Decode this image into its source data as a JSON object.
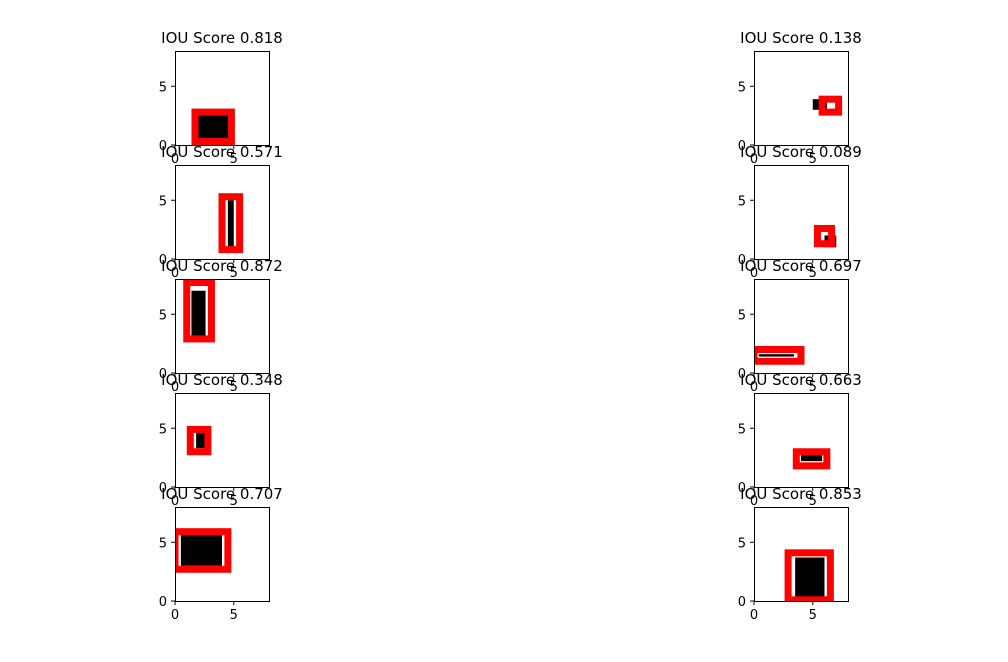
{
  "chart_data": [
    {
      "type": "box-overlap",
      "title": "IOU Score 0.818",
      "xlim": [
        0,
        8
      ],
      "ylim": [
        0,
        8
      ],
      "xticks": [
        "0",
        "5"
      ],
      "yticks": [
        "0",
        "5"
      ],
      "ground_truth_box": [
        1.8,
        0.0,
        5.0,
        3.0
      ],
      "predicted_box": [
        1.7,
        0.3,
        4.8,
        2.8
      ],
      "iou": 0.818
    },
    {
      "type": "box-overlap",
      "title": "IOU Score 0.138",
      "xlim": [
        0,
        8
      ],
      "ylim": [
        0,
        8
      ],
      "xticks": [
        "0",
        "5"
      ],
      "yticks": [
        "0",
        "5"
      ],
      "ground_truth_box": [
        5.0,
        3.0,
        6.2,
        3.9
      ],
      "predicted_box": [
        5.8,
        2.8,
        7.2,
        3.9
      ],
      "iou": 0.138
    },
    {
      "type": "box-overlap",
      "title": "IOU Score 0.571",
      "xlim": [
        0,
        8
      ],
      "ylim": [
        0,
        8
      ],
      "xticks": [
        "0",
        "5"
      ],
      "yticks": [
        "0",
        "5"
      ],
      "ground_truth_box": [
        4.5,
        1.0,
        5.0,
        5.0
      ],
      "predicted_box": [
        4.0,
        0.8,
        5.5,
        5.3
      ],
      "iou": 0.571
    },
    {
      "type": "box-overlap",
      "title": "IOU Score 0.089",
      "xlim": [
        0,
        8
      ],
      "ylim": [
        0,
        8
      ],
      "xticks": [
        "0",
        "5"
      ],
      "yticks": [
        "0",
        "5"
      ],
      "ground_truth_box": [
        6.0,
        1.0,
        7.0,
        2.0
      ],
      "predicted_box": [
        5.4,
        1.3,
        6.6,
        2.6
      ],
      "iou": 0.089
    },
    {
      "type": "box-overlap",
      "title": "IOU Score 0.872",
      "xlim": [
        0,
        8
      ],
      "ylim": [
        0,
        8
      ],
      "xticks": [
        "0",
        "5"
      ],
      "yticks": [
        "0",
        "5"
      ],
      "ground_truth_box": [
        1.4,
        3.0,
        2.6,
        7.0
      ],
      "predicted_box": [
        1.0,
        2.9,
        3.1,
        7.7
      ],
      "iou": 0.872
    },
    {
      "type": "box-overlap",
      "title": "IOU Score 0.697",
      "xlim": [
        0,
        8
      ],
      "ylim": [
        0,
        8
      ],
      "xticks": [
        "0",
        "5"
      ],
      "yticks": [
        "0",
        "5"
      ],
      "ground_truth_box": [
        0.4,
        1.4,
        3.4,
        1.6
      ],
      "predicted_box": [
        0.0,
        1.0,
        4.0,
        2.0
      ],
      "iou": 0.697
    },
    {
      "type": "box-overlap",
      "title": "IOU Score 0.348",
      "xlim": [
        0,
        8
      ],
      "ylim": [
        0,
        8
      ],
      "xticks": [
        "0",
        "5"
      ],
      "yticks": [
        "0",
        "5"
      ],
      "ground_truth_box": [
        1.8,
        3.3,
        3.0,
        5.0
      ],
      "predicted_box": [
        1.3,
        3.0,
        2.8,
        4.9
      ],
      "iou": 0.348
    },
    {
      "type": "box-overlap",
      "title": "IOU Score 0.663",
      "xlim": [
        0,
        8
      ],
      "ylim": [
        0,
        8
      ],
      "xticks": [
        "0",
        "5"
      ],
      "yticks": [
        "0",
        "5"
      ],
      "ground_truth_box": [
        4.0,
        2.2,
        5.8,
        3.0
      ],
      "predicted_box": [
        3.6,
        1.8,
        6.2,
        3.0
      ],
      "iou": 0.663
    },
    {
      "type": "box-overlap",
      "title": "IOU Score 0.707",
      "xlim": [
        0,
        8
      ],
      "ylim": [
        0,
        8
      ],
      "xticks": [
        "0",
        "5"
      ],
      "yticks": [
        "0",
        "5"
      ],
      "ground_truth_box": [
        0.5,
        3.0,
        4.0,
        6.0
      ],
      "predicted_box": [
        0.0,
        2.7,
        4.5,
        5.9
      ],
      "iou": 0.707
    },
    {
      "type": "box-overlap",
      "title": "IOU Score 0.853",
      "xlim": [
        0,
        8
      ],
      "ylim": [
        0,
        8
      ],
      "xticks": [
        "0",
        "5"
      ],
      "yticks": [
        "0",
        "5"
      ],
      "ground_truth_box": [
        3.5,
        0.3,
        6.0,
        3.7
      ],
      "predicted_box": [
        2.9,
        0.1,
        6.5,
        4.1
      ],
      "iou": 0.853
    }
  ],
  "colors": {
    "ground_truth": "#000000",
    "predicted": "#ff0000",
    "spine": "#000000"
  }
}
